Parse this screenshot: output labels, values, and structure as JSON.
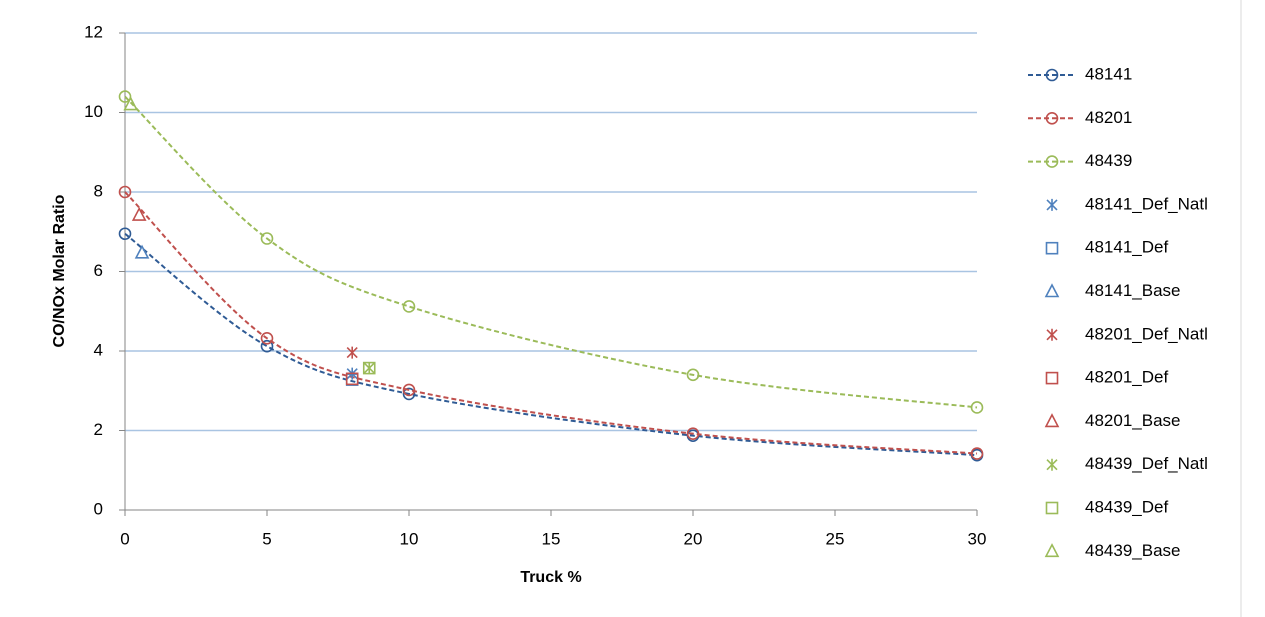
{
  "chart_data": {
    "type": "line",
    "x_label": "Truck %",
    "y_label": "CO/NOx Molar Ratio",
    "xlim": [
      0,
      30
    ],
    "xticks": [
      0,
      5,
      10,
      15,
      20,
      25,
      30
    ],
    "ylim": [
      0,
      12
    ],
    "yticks": [
      0,
      2,
      4,
      6,
      8,
      10,
      12
    ],
    "grid": true,
    "legend": "right",
    "series": [
      {
        "name": "48141",
        "color": "#2f5b95",
        "marker": "circle",
        "line": true,
        "x": [
          0,
          5,
          10,
          20,
          30
        ],
        "values": [
          6.95,
          4.12,
          2.92,
          1.87,
          1.38
        ]
      },
      {
        "name": "48201",
        "color": "#c0504d",
        "marker": "circle",
        "line": true,
        "x": [
          0,
          5,
          10,
          20,
          30
        ],
        "values": [
          8.0,
          4.32,
          3.02,
          1.92,
          1.42
        ]
      },
      {
        "name": "48439",
        "color": "#9bbb59",
        "marker": "circle",
        "line": true,
        "x": [
          0,
          5,
          10,
          20,
          30
        ],
        "values": [
          10.4,
          6.83,
          5.12,
          3.4,
          2.58
        ]
      },
      {
        "name": "48141_Def_Natl",
        "color": "#4f81bd",
        "marker": "asterisk",
        "line": false,
        "x": [
          8
        ],
        "values": [
          3.43
        ]
      },
      {
        "name": "48141_Def",
        "color": "#4f81bd",
        "marker": "square",
        "line": false,
        "x": [
          8
        ],
        "values": [
          3.28
        ]
      },
      {
        "name": "48141_Base",
        "color": "#4f81bd",
        "marker": "triangle",
        "line": false,
        "x": [
          0.6
        ],
        "values": [
          6.47
        ]
      },
      {
        "name": "48201_Def_Natl",
        "color": "#c0504d",
        "marker": "asterisk",
        "line": false,
        "x": [
          8
        ],
        "values": [
          3.96
        ]
      },
      {
        "name": "48201_Def",
        "color": "#c0504d",
        "marker": "square",
        "line": false,
        "x": [
          8
        ],
        "values": [
          3.3
        ]
      },
      {
        "name": "48201_Base",
        "color": "#c0504d",
        "marker": "triangle",
        "line": false,
        "x": [
          0.5
        ],
        "values": [
          7.42
        ]
      },
      {
        "name": "48439_Def_Natl",
        "color": "#9bbb59",
        "marker": "asterisk",
        "line": false,
        "x": [
          8.6
        ],
        "values": [
          3.57
        ]
      },
      {
        "name": "48439_Def",
        "color": "#9bbb59",
        "marker": "square",
        "line": false,
        "x": [
          8.6
        ],
        "values": [
          3.57
        ]
      },
      {
        "name": "48439_Base",
        "color": "#9bbb59",
        "marker": "triangle",
        "line": false,
        "x": [
          0.2
        ],
        "values": [
          10.2
        ]
      }
    ]
  }
}
